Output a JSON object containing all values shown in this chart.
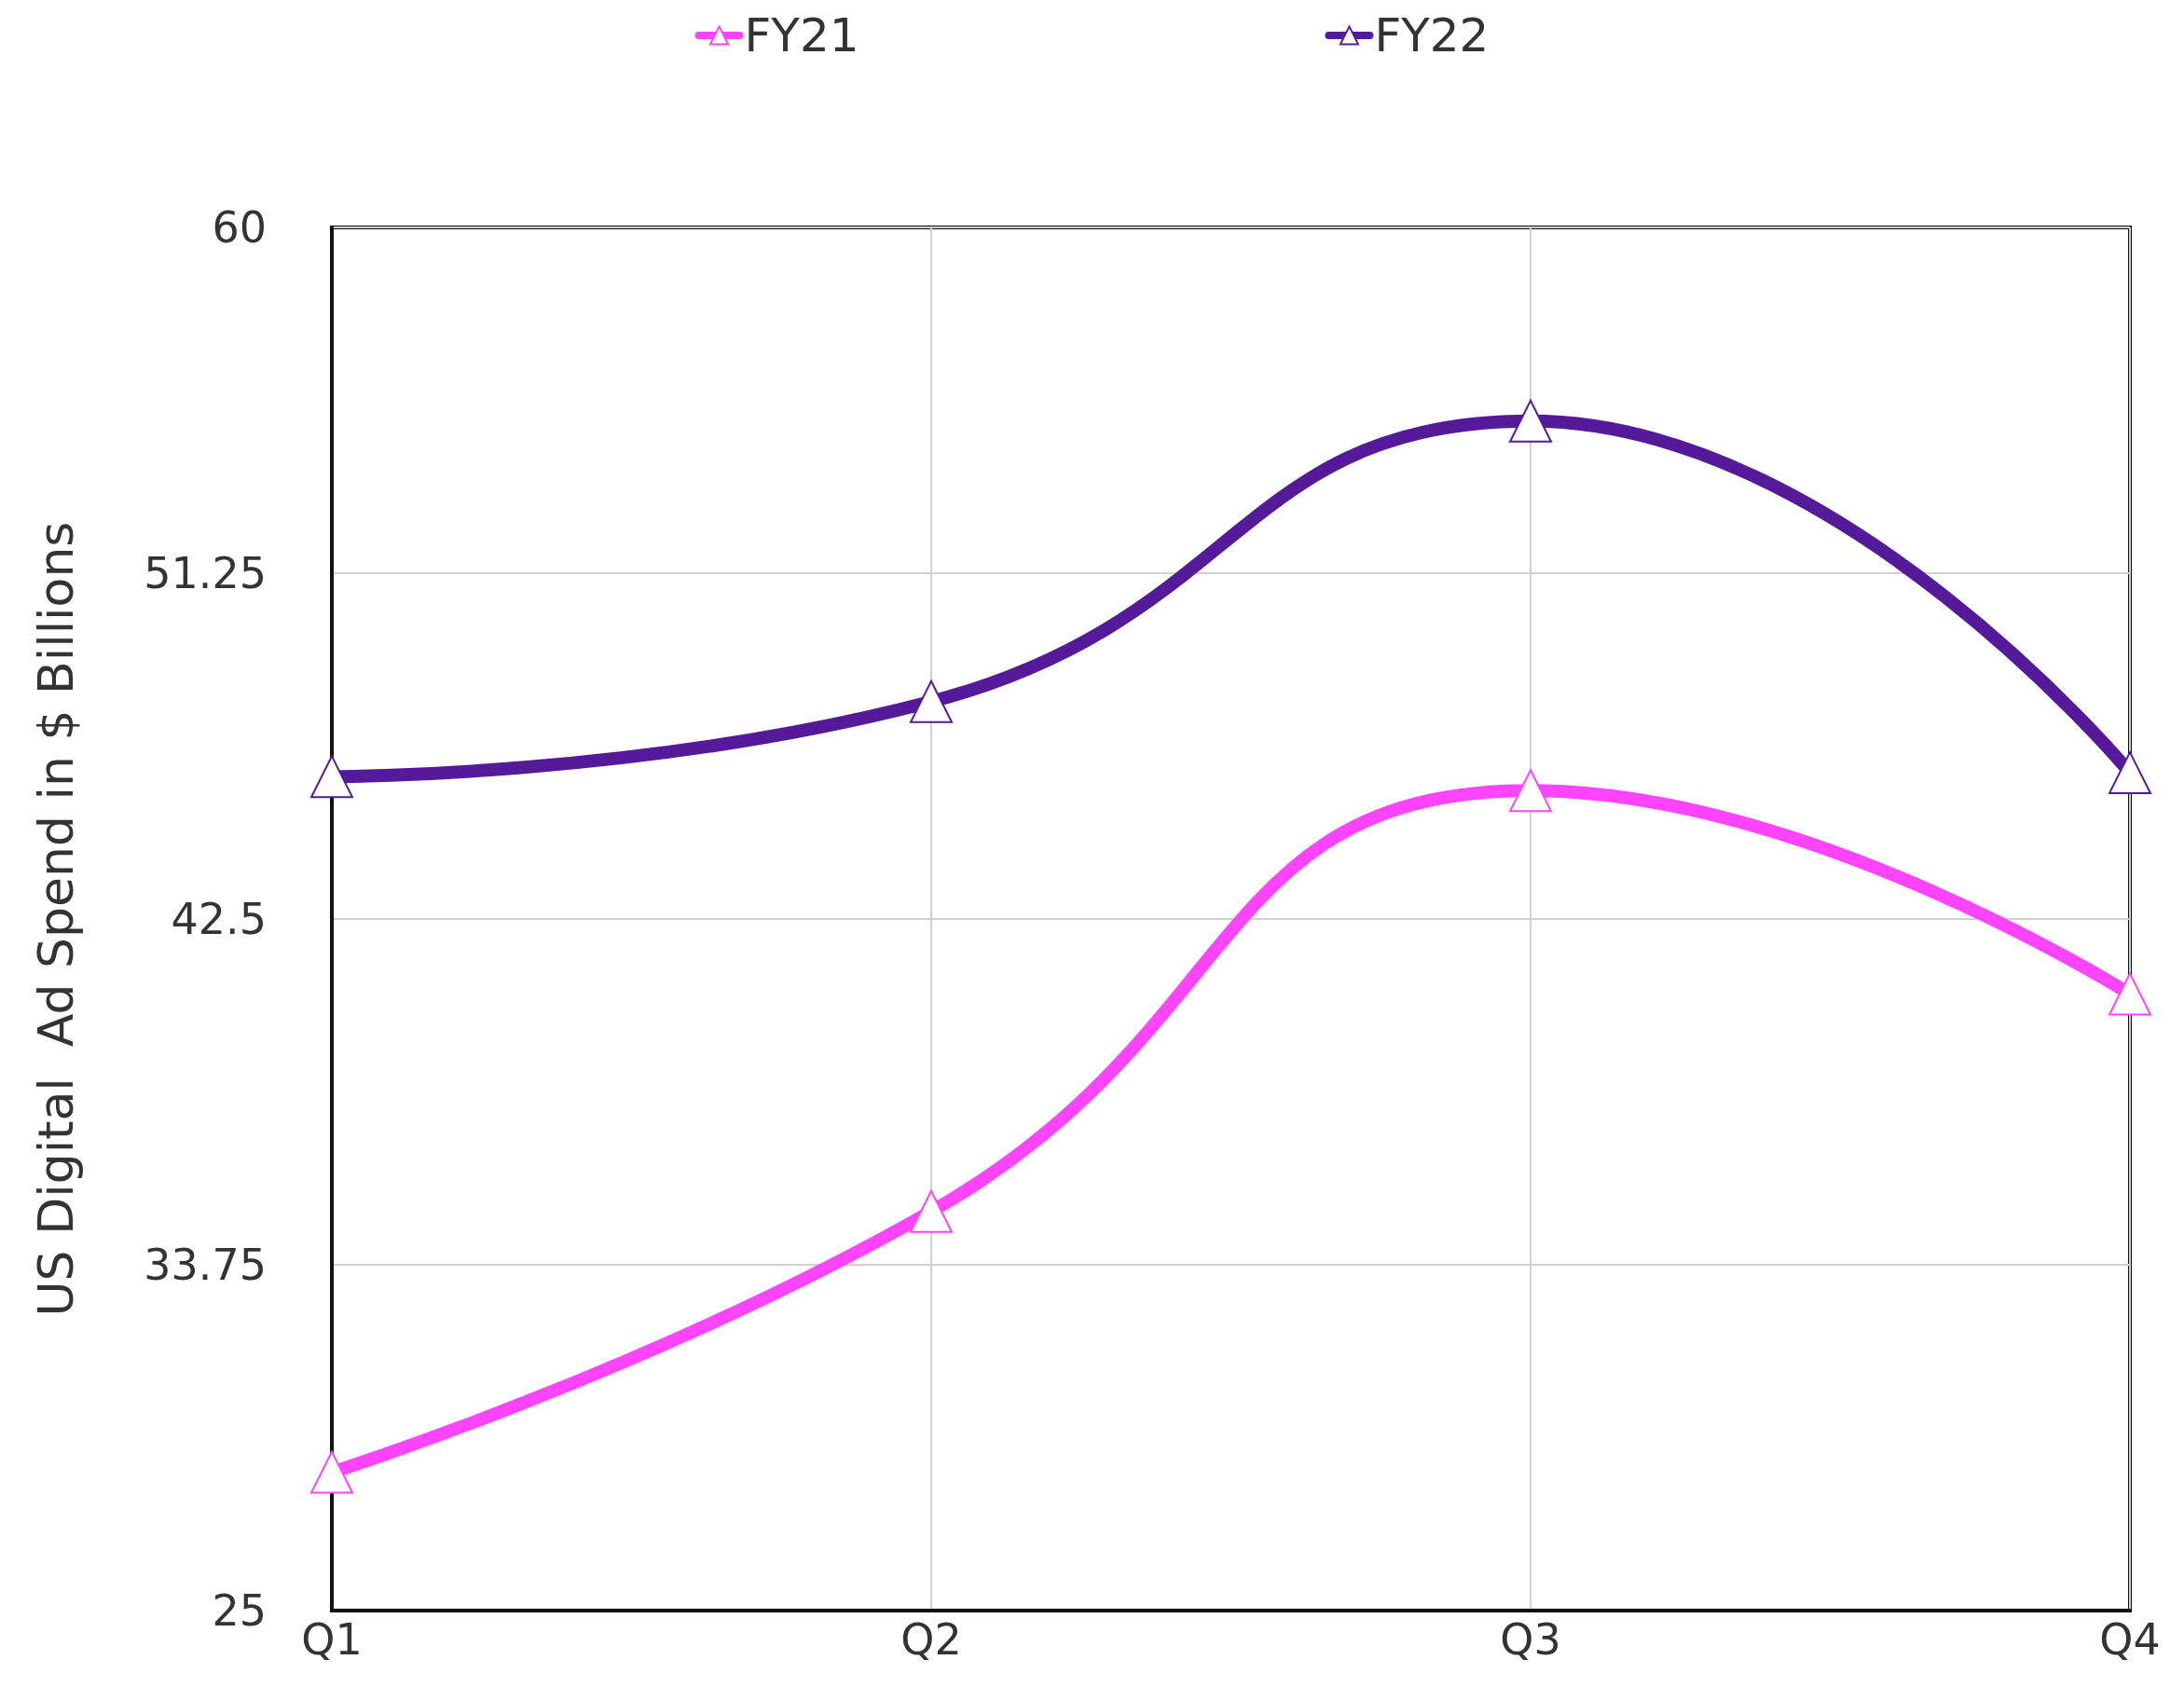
{
  "chart_data": {
    "type": "line",
    "ylabel": "US Digital  Ad Spend in $ Billions",
    "categories": [
      "Q1",
      "Q2",
      "Q3",
      "Q4"
    ],
    "series": [
      {
        "name": "FY21",
        "color": "#ff44ff",
        "values": [
          28.5,
          35.1,
          45.75,
          40.6
        ]
      },
      {
        "name": "FY22",
        "color": "#551a99",
        "values": [
          46.1,
          48.0,
          55.1,
          46.2
        ]
      }
    ],
    "ylim": [
      25,
      60
    ],
    "yticks": [
      25,
      33.75,
      42.5,
      51.25,
      60
    ],
    "grid": true,
    "legend": "top",
    "marker": "triangle",
    "line_style": "solid"
  }
}
